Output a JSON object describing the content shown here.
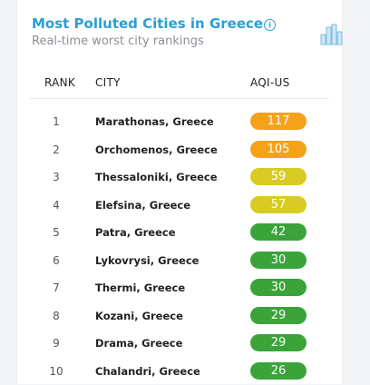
{
  "header": {
    "title": "Most Polluted Cities in Greece",
    "info_icon": "info-icon",
    "subtitle": "Real-time worst city rankings",
    "chart_icon": "bar-chart-icon"
  },
  "table": {
    "columns": {
      "rank": "RANK",
      "city": "CITY",
      "aqi": "AQI-US"
    },
    "rows": [
      {
        "rank": "1",
        "city": "Marathonas, Greece",
        "aqi": "117",
        "color": "#f5a21b"
      },
      {
        "rank": "2",
        "city": "Orchomenos, Greece",
        "aqi": "105",
        "color": "#f5a21b"
      },
      {
        "rank": "3",
        "city": "Thessaloniki, Greece",
        "aqi": "59",
        "color": "#d8cc24"
      },
      {
        "rank": "4",
        "city": "Elefsina, Greece",
        "aqi": "57",
        "color": "#d8cc24"
      },
      {
        "rank": "5",
        "city": "Patra, Greece",
        "aqi": "42",
        "color": "#3aa33a"
      },
      {
        "rank": "6",
        "city": "Lykovrysi, Greece",
        "aqi": "30",
        "color": "#3aa33a"
      },
      {
        "rank": "7",
        "city": "Thermi, Greece",
        "aqi": "30",
        "color": "#3aa33a"
      },
      {
        "rank": "8",
        "city": "Kozani, Greece",
        "aqi": "29",
        "color": "#3aa33a"
      },
      {
        "rank": "9",
        "city": "Drama, Greece",
        "aqi": "29",
        "color": "#3aa33a"
      },
      {
        "rank": "10",
        "city": "Chalandri, Greece",
        "aqi": "26",
        "color": "#3aa33a"
      }
    ]
  }
}
